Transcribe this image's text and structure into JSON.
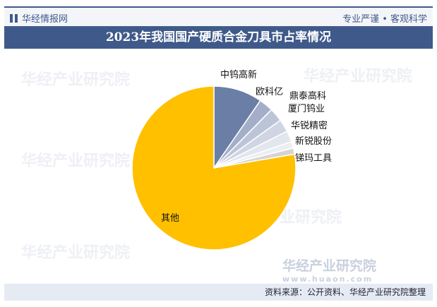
{
  "header": {
    "brand": "华经情报网",
    "slogan": "专业严谨 • 客观科学"
  },
  "watermark": {
    "name": "华经产业研究院",
    "url": "www.huaon.com"
  },
  "footer": {
    "source": "资料来源：公开资料、华经产业研究院整理"
  },
  "chart_data": {
    "type": "pie",
    "title": "2023年我国国产硬质合金刀具市占率情况",
    "categories": [
      "中钨高新",
      "欧科亿",
      "鼎泰高科",
      "厦门钨业",
      "华锐精密",
      "新锐股份",
      "锑玛工具",
      "其他"
    ],
    "values": [
      9.6,
      2.8,
      2.7,
      2.5,
      2.2,
      1.3,
      1.2,
      77.7
    ],
    "colors": [
      "#6b7ea6",
      "#a3afc9",
      "#bcc5d8",
      "#cfd5e2",
      "#e2e6ee",
      "#eceef2",
      "#d4d4d4",
      "#ffc000"
    ],
    "start": "12 o'clock",
    "direction": "clockwise"
  }
}
